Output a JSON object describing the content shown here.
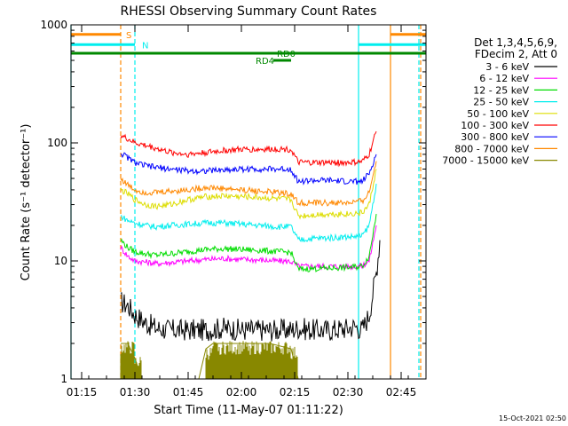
{
  "chart_data": {
    "type": "line",
    "title": "RHESSI Observing Summary Count Rates",
    "xlabel": "Start Time (11-May-07 01:11:22)",
    "ylabel": "Count Rate (s⁻¹ detector⁻¹)",
    "footer": "15-Oct-2021 02:50",
    "y_scale": "log",
    "xlim_minutes": [
      72,
      172
    ],
    "ylim": [
      1,
      1000
    ],
    "x_ticks": [
      {
        "m": 75,
        "label": "01:15"
      },
      {
        "m": 90,
        "label": "01:30"
      },
      {
        "m": 105,
        "label": "01:45"
      },
      {
        "m": 120,
        "label": "02:00"
      },
      {
        "m": 135,
        "label": "02:15"
      },
      {
        "m": 150,
        "label": "02:30"
      },
      {
        "m": 165,
        "label": "02:45"
      }
    ],
    "y_ticks": [
      {
        "v": 1,
        "label": "1"
      },
      {
        "v": 10,
        "label": "10"
      },
      {
        "v": 100,
        "label": "100"
      },
      {
        "v": 1000,
        "label": "1000"
      }
    ],
    "legend": {
      "header": [
        "Det 1,3,4,5,6,9,",
        "FDecim 2, Att 0"
      ],
      "position": "right"
    },
    "series": [
      {
        "name": "3 - 6 keV",
        "color": "#000000",
        "points": [
          [
            86,
            4.5
          ],
          [
            88,
            4.2
          ],
          [
            90,
            3.5
          ],
          [
            93,
            3.0
          ],
          [
            96,
            2.7
          ],
          [
            100,
            2.6
          ],
          [
            105,
            2.6
          ],
          [
            110,
            2.6
          ],
          [
            115,
            2.7
          ],
          [
            120,
            2.6
          ],
          [
            125,
            2.6
          ],
          [
            130,
            2.6
          ],
          [
            134,
            2.6
          ],
          [
            136,
            2.7
          ],
          [
            140,
            2.6
          ],
          [
            145,
            2.6
          ],
          [
            150,
            2.7
          ],
          [
            152,
            2.8
          ],
          [
            154,
            2.6
          ],
          [
            156,
            3.5
          ],
          [
            158,
            8
          ],
          [
            159,
            15
          ]
        ]
      },
      {
        "name": "6 - 12 keV",
        "color": "#ff00ff",
        "points": [
          [
            86,
            13
          ],
          [
            88,
            11
          ],
          [
            90,
            10
          ],
          [
            93,
            9.8
          ],
          [
            96,
            9.5
          ],
          [
            100,
            9.7
          ],
          [
            105,
            10
          ],
          [
            110,
            10.3
          ],
          [
            115,
            10.5
          ],
          [
            120,
            10.3
          ],
          [
            125,
            10.2
          ],
          [
            130,
            10.0
          ],
          [
            134,
            9.9
          ],
          [
            136,
            9.0
          ],
          [
            140,
            9.0
          ],
          [
            145,
            9.0
          ],
          [
            150,
            9.0
          ],
          [
            154,
            9.1
          ],
          [
            156,
            10
          ],
          [
            158,
            20
          ]
        ]
      },
      {
        "name": "12 - 25 keV",
        "color": "#00dd00",
        "points": [
          [
            86,
            15
          ],
          [
            88,
            13
          ],
          [
            90,
            12
          ],
          [
            93,
            11.5
          ],
          [
            96,
            11.2
          ],
          [
            100,
            11.5
          ],
          [
            105,
            12
          ],
          [
            110,
            12.5
          ],
          [
            115,
            12.7
          ],
          [
            120,
            12.5
          ],
          [
            125,
            12.3
          ],
          [
            130,
            12.0
          ],
          [
            134,
            11.8
          ],
          [
            136,
            8.5
          ],
          [
            140,
            8.6
          ],
          [
            145,
            8.7
          ],
          [
            150,
            8.8
          ],
          [
            154,
            9.0
          ],
          [
            156,
            11
          ],
          [
            158,
            25
          ]
        ]
      },
      {
        "name": "25 - 50 keV",
        "color": "#00eeee",
        "points": [
          [
            86,
            24
          ],
          [
            88,
            22
          ],
          [
            90,
            21
          ],
          [
            93,
            20
          ],
          [
            96,
            19.5
          ],
          [
            100,
            20
          ],
          [
            105,
            20.5
          ],
          [
            110,
            21
          ],
          [
            115,
            21
          ],
          [
            120,
            20.5
          ],
          [
            125,
            20
          ],
          [
            130,
            19.5
          ],
          [
            134,
            19.5
          ],
          [
            136,
            15
          ],
          [
            140,
            15.5
          ],
          [
            145,
            15.7
          ],
          [
            150,
            16
          ],
          [
            154,
            16.2
          ],
          [
            156,
            20
          ],
          [
            158,
            45
          ]
        ]
      },
      {
        "name": "50 - 100 keV",
        "color": "#dddd00",
        "points": [
          [
            86,
            40
          ],
          [
            88,
            37
          ],
          [
            90,
            33
          ],
          [
            93,
            30
          ],
          [
            96,
            29
          ],
          [
            100,
            30
          ],
          [
            105,
            33
          ],
          [
            110,
            35
          ],
          [
            115,
            35.5
          ],
          [
            120,
            35
          ],
          [
            125,
            34.5
          ],
          [
            130,
            33.5
          ],
          [
            134,
            33
          ],
          [
            136,
            24
          ],
          [
            140,
            24.5
          ],
          [
            145,
            25
          ],
          [
            150,
            25
          ],
          [
            154,
            25.5
          ],
          [
            156,
            30
          ],
          [
            158,
            60
          ]
        ]
      },
      {
        "name": "100 - 300 keV",
        "color": "#ff0000",
        "points": [
          [
            86,
            115
          ],
          [
            88,
            108
          ],
          [
            90,
            100
          ],
          [
            93,
            95
          ],
          [
            96,
            90
          ],
          [
            100,
            83
          ],
          [
            105,
            80
          ],
          [
            110,
            83
          ],
          [
            115,
            86
          ],
          [
            120,
            88
          ],
          [
            125,
            88
          ],
          [
            130,
            89
          ],
          [
            134,
            88
          ],
          [
            136,
            68
          ],
          [
            140,
            68
          ],
          [
            145,
            68
          ],
          [
            150,
            68
          ],
          [
            154,
            69
          ],
          [
            156,
            80
          ],
          [
            158,
            125
          ]
        ]
      },
      {
        "name": "300 - 800 keV",
        "color": "#0000ff",
        "points": [
          [
            86,
            82
          ],
          [
            88,
            75
          ],
          [
            90,
            68
          ],
          [
            93,
            64
          ],
          [
            96,
            62
          ],
          [
            100,
            60
          ],
          [
            105,
            58
          ],
          [
            110,
            58
          ],
          [
            115,
            59
          ],
          [
            120,
            60
          ],
          [
            125,
            60
          ],
          [
            130,
            60
          ],
          [
            134,
            60
          ],
          [
            136,
            47
          ],
          [
            140,
            48
          ],
          [
            145,
            48
          ],
          [
            150,
            47
          ],
          [
            154,
            47
          ],
          [
            156,
            55
          ],
          [
            158,
            80
          ]
        ]
      },
      {
        "name": "800 - 7000 keV",
        "color": "#ff8800",
        "points": [
          [
            86,
            50
          ],
          [
            88,
            44
          ],
          [
            90,
            40
          ],
          [
            93,
            38
          ],
          [
            96,
            38
          ],
          [
            100,
            39
          ],
          [
            105,
            40
          ],
          [
            110,
            42
          ],
          [
            115,
            41
          ],
          [
            120,
            40
          ],
          [
            125,
            39
          ],
          [
            130,
            38
          ],
          [
            134,
            37
          ],
          [
            136,
            31
          ],
          [
            140,
            31
          ],
          [
            145,
            31
          ],
          [
            150,
            31
          ],
          [
            154,
            32
          ],
          [
            156,
            38
          ],
          [
            158,
            70
          ]
        ]
      },
      {
        "name": "7000 - 15000 keV",
        "color": "#888800",
        "points": [
          [
            86,
            2.0
          ],
          [
            88,
            2.0
          ],
          [
            90,
            1.5
          ],
          [
            92,
            1
          ],
          [
            108,
            1
          ],
          [
            110,
            1.8
          ],
          [
            112,
            2.0
          ],
          [
            120,
            2.0
          ],
          [
            128,
            2.0
          ],
          [
            134,
            1.8
          ],
          [
            136,
            1
          ],
          [
            150,
            1
          ],
          [
            155,
            1
          ]
        ]
      }
    ],
    "state_bars": [
      {
        "label": "S",
        "color": "#ff8800",
        "m_start": 72,
        "m_end": 86,
        "y": 830,
        "label_m": 87.5
      },
      {
        "label": "N",
        "color": "#00eeee",
        "m_start": 72,
        "m_end": 90,
        "y": 680,
        "label_m": 92
      },
      {
        "label": "RD0",
        "color": "#008800",
        "m_start": 72,
        "m_end": 172,
        "y": 575,
        "label_m": 130
      },
      {
        "label": "RD4",
        "color": "#008800",
        "m_start": 129,
        "m_end": 134,
        "y": 500,
        "label_m": 124
      }
    ],
    "right_bars": [
      {
        "color": "#ff8800",
        "m_start": 162,
        "m_end": 172,
        "y": 830
      },
      {
        "color": "#00eeee",
        "m_start": 153,
        "m_end": 172,
        "y": 680
      }
    ],
    "vlines": [
      {
        "m": 72,
        "color": "#00eeee",
        "dash": false
      },
      {
        "m": 86,
        "color": "#ff8800",
        "dash": true
      },
      {
        "m": 90,
        "color": "#00eeee",
        "dash": true
      },
      {
        "m": 153,
        "color": "#00eeee",
        "dash": false
      },
      {
        "m": 162,
        "color": "#ff8800",
        "dash": false
      },
      {
        "m": 170,
        "color": "#00eeee",
        "dash": true
      },
      {
        "m": 170.5,
        "color": "#ff8800",
        "dash": true
      }
    ]
  }
}
